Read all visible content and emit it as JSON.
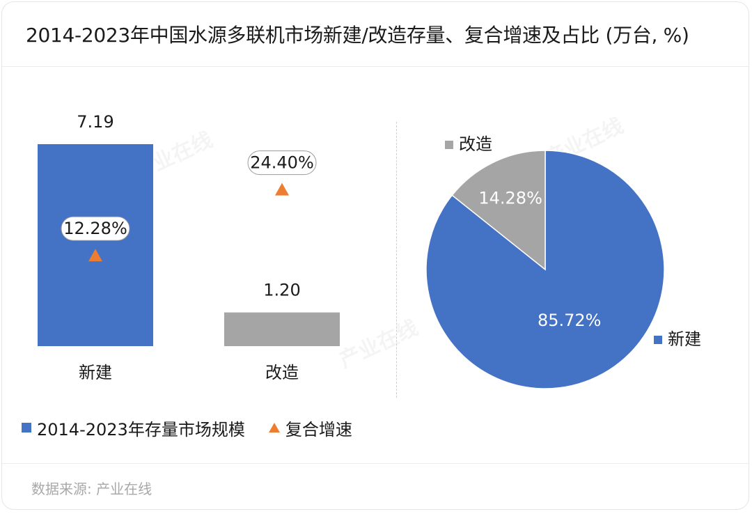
{
  "title": "2014-2023年中国水源多联机市场新建/改造存量、复合增速及占比 (万台, %)",
  "source": "数据来源: 产业在线",
  "watermark": "产业在线",
  "colors": {
    "new_build": "#4472C4",
    "renovation": "#A5A5A5",
    "growth_marker": "#ED7D31"
  },
  "chart_data": [
    {
      "type": "bar",
      "categories": [
        "新建",
        "改造"
      ],
      "series": [
        {
          "name": "2014-2023年存量市场规模",
          "values": [
            7.19,
            1.2
          ],
          "labels": [
            "7.19",
            "1.20"
          ]
        },
        {
          "name": "复合增速",
          "values": [
            12.28,
            24.4
          ],
          "labels": [
            "12.28%",
            "24.40%"
          ],
          "marker": "triangle"
        }
      ],
      "legend_position": "bottom-left",
      "grid": false
    },
    {
      "type": "pie",
      "slices": [
        {
          "label": "新建",
          "value": 85.72,
          "value_label": "85.72%"
        },
        {
          "label": "改造",
          "value": 14.28,
          "value_label": "14.28%"
        }
      ],
      "start_angle": "12-o'clock",
      "direction": "clockwise"
    }
  ]
}
